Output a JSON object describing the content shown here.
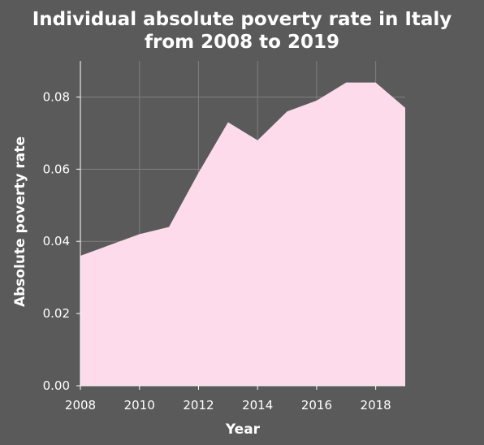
{
  "chart_data": {
    "type": "area",
    "title_lines": [
      "Individual absolute poverty rate in Italy",
      "from 2008 to 2019"
    ],
    "xlabel": "Year",
    "ylabel": "Absolute poverty rate",
    "xlim": [
      2008,
      2019
    ],
    "ylim": [
      0,
      0.09
    ],
    "x_ticks": [
      2008,
      2010,
      2012,
      2014,
      2016,
      2018
    ],
    "x_tick_labels": [
      "2008",
      "2010",
      "2012",
      "2014",
      "2016",
      "2018"
    ],
    "y_ticks": [
      0,
      0.02,
      0.04,
      0.06,
      0.08
    ],
    "y_tick_labels": [
      "0.00",
      "0.02",
      "0.04",
      "0.06",
      "0.08"
    ],
    "grid": true,
    "legend": "none",
    "x": [
      2008,
      2009,
      2010,
      2011,
      2012,
      2013,
      2014,
      2015,
      2016,
      2017,
      2018,
      2019
    ],
    "values": [
      0.036,
      0.039,
      0.042,
      0.044,
      0.059,
      0.073,
      0.068,
      0.076,
      0.079,
      0.084,
      0.084,
      0.077
    ]
  },
  "colors": {
    "background": "#5a5a5a",
    "plot_background": "#5a5a5a",
    "grid": "#7f7f7f",
    "area_fill": "#fddbea",
    "text": "#ffffff"
  }
}
